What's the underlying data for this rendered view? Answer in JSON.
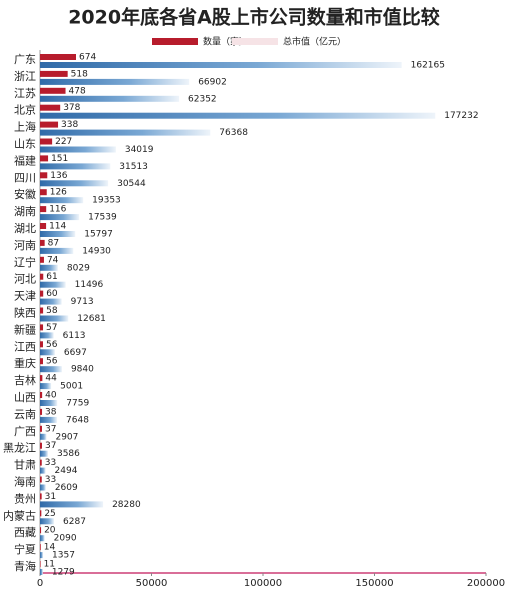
{
  "chart_data": {
    "type": "bar",
    "orientation": "horizontal",
    "title": "2020年底各省A股上市公司数量和市值比较",
    "categories": [
      "广东",
      "浙江",
      "江苏",
      "北京",
      "上海",
      "山东",
      "福建",
      "四川",
      "安徽",
      "湖南",
      "湖北",
      "河南",
      "辽宁",
      "河北",
      "天津",
      "陕西",
      "新疆",
      "江西",
      "重庆",
      "吉林",
      "山西",
      "云南",
      "广西",
      "黑龙江",
      "甘肃",
      "海南",
      "贵州",
      "内蒙古",
      "西藏",
      "宁夏",
      "青海"
    ],
    "series": [
      {
        "name": "数量（家）",
        "color": "#b71c2c",
        "axis": "x2",
        "values": [
          674,
          518,
          478,
          378,
          338,
          227,
          151,
          136,
          126,
          116,
          114,
          87,
          74,
          61,
          60,
          58,
          57,
          56,
          56,
          44,
          40,
          38,
          37,
          37,
          33,
          33,
          31,
          25,
          20,
          14,
          11
        ]
      },
      {
        "name": "总市值（亿元）",
        "color": "#3a78b5",
        "values": [
          162165,
          66902,
          62352,
          177232,
          76368,
          34019,
          31513,
          30544,
          19353,
          17539,
          15797,
          14930,
          8029,
          11496,
          9713,
          12681,
          6113,
          6697,
          9840,
          5001,
          7759,
          7648,
          2907,
          3586,
          2494,
          2609,
          28280,
          6287,
          2090,
          1357,
          1279
        ]
      }
    ],
    "xlim": [
      0,
      200000
    ],
    "xticks": [
      0,
      50000,
      100000,
      150000,
      200000
    ],
    "x2lim": [
      0,
      8350
    ]
  }
}
